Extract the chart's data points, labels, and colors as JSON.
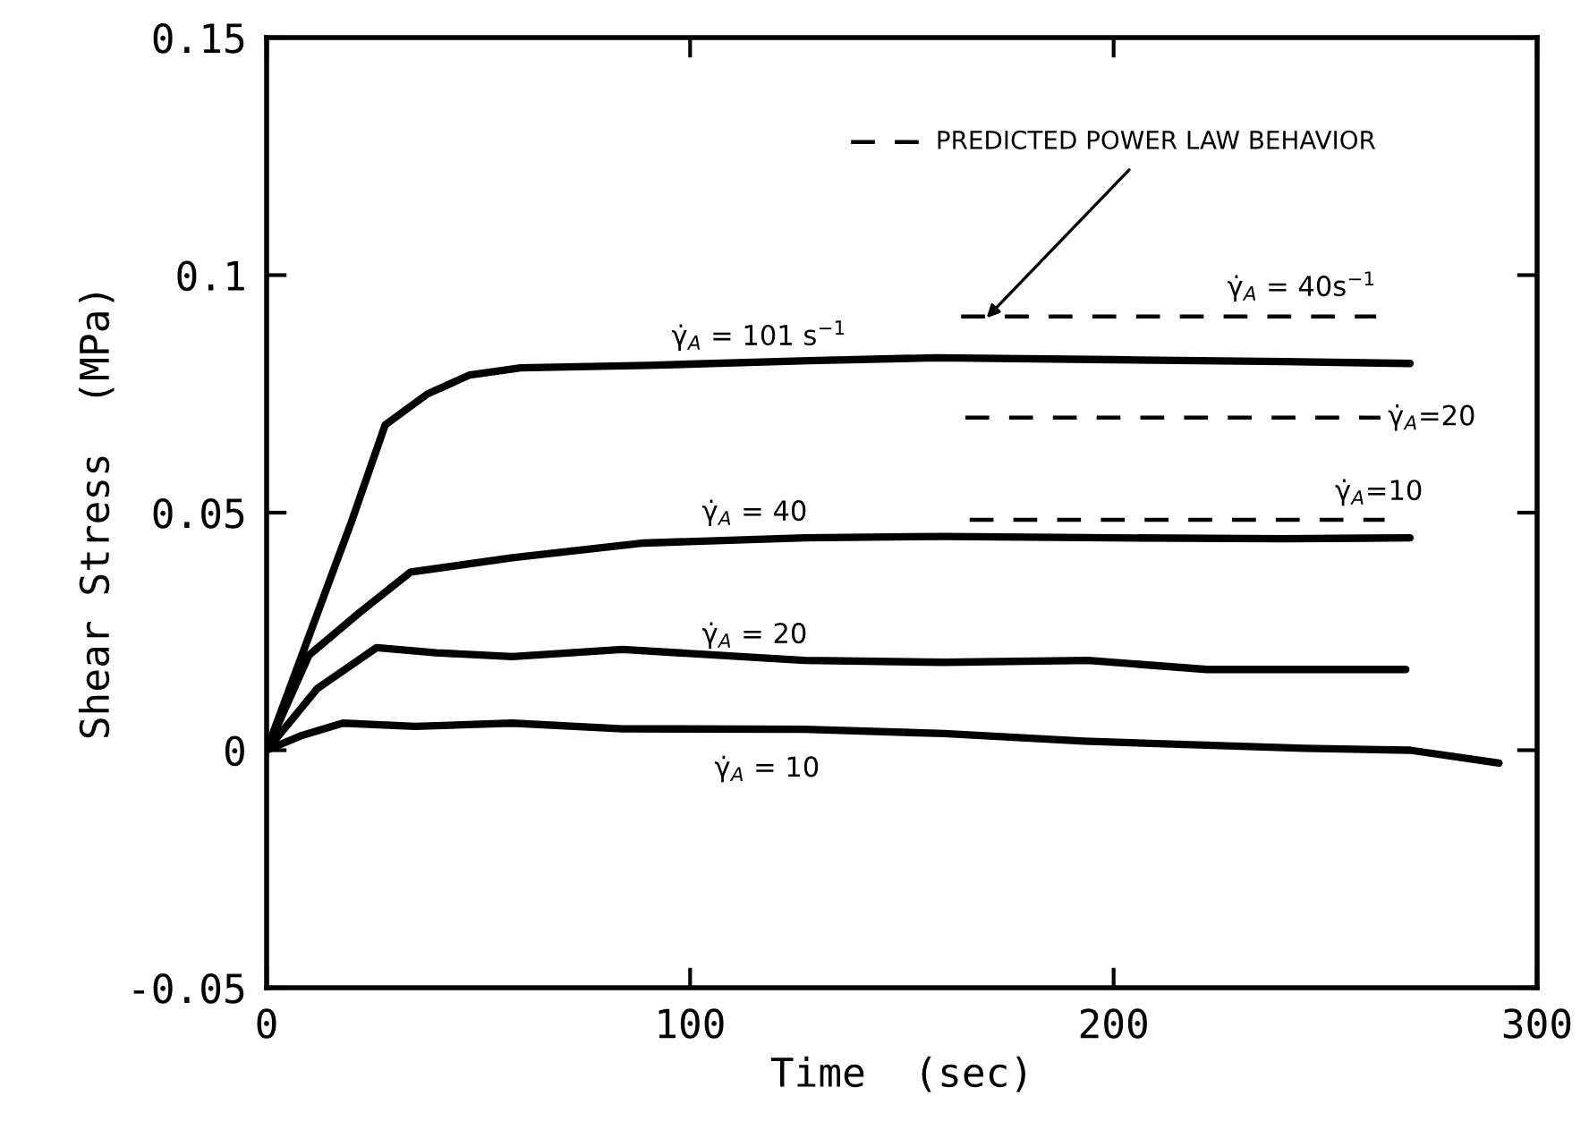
{
  "chart_data": {
    "type": "line",
    "xlabel": "Time  (sec)",
    "ylabel": "Shear Stress  (MPa)",
    "xlim": [
      0,
      300
    ],
    "ylim": [
      -0.05,
      0.15
    ],
    "xticks": [
      0,
      100,
      200,
      300
    ],
    "yticks": [
      -0.05,
      0,
      0.05,
      0.1,
      0.15
    ],
    "grid": false,
    "legend": false,
    "marker": "none",
    "annotations": [
      {
        "text": "PREDICTED POWER LAW BEHAVIOR",
        "x": 170,
        "y": 0.091
      }
    ],
    "series": [
      {
        "name": "γ̇$_{A}$ = 101 s$^{−1}$",
        "color": "#000000",
        "line_style": "solid",
        "x": [
          0,
          10,
          20,
          28,
          38,
          48,
          60,
          90,
          128,
          158,
          200,
          240,
          270
        ],
        "values": [
          0,
          0.024,
          0.048,
          0.0685,
          0.075,
          0.079,
          0.0805,
          0.081,
          0.082,
          0.0826,
          0.0822,
          0.0818,
          0.0814
        ]
      },
      {
        "name": "γ̇$_{A}$ = 40",
        "color": "#000000",
        "line_style": "solid",
        "x": [
          0,
          10,
          22,
          34,
          58,
          89,
          127,
          160,
          200,
          240,
          270
        ],
        "values": [
          0,
          0.02,
          0.029,
          0.0375,
          0.0405,
          0.0436,
          0.0447,
          0.045,
          0.0447,
          0.0445,
          0.0447
        ]
      },
      {
        "name": "γ̇$_{A}$ = 20",
        "color": "#000000",
        "line_style": "solid",
        "x": [
          0,
          12,
          26,
          40,
          58,
          84,
          127,
          160,
          194,
          222,
          269
        ],
        "values": [
          0,
          0.013,
          0.0216,
          0.0205,
          0.0197,
          0.0212,
          0.0189,
          0.0185,
          0.0189,
          0.017,
          0.017
        ]
      },
      {
        "name": "γ̇$_{A}$ = 10",
        "color": "#000000",
        "line_style": "solid",
        "x": [
          0,
          8,
          18,
          35,
          58,
          84,
          127,
          160,
          193,
          245,
          270,
          291
        ],
        "values": [
          0,
          0.003,
          0.0057,
          0.005,
          0.0057,
          0.0045,
          0.0044,
          0.0035,
          0.0019,
          0.0004,
          0.0,
          -0.0027
        ]
      },
      {
        "name": "γ̇$_{A}$ = 40s$^{−1}$",
        "color": "#000000",
        "line_style": "dashed",
        "x": [
          164,
          262
        ],
        "values": [
          0.0913,
          0.0913
        ]
      },
      {
        "name": "γ̇$_{A}$=20",
        "color": "#000000",
        "line_style": "dashed",
        "x": [
          165,
          263
        ],
        "values": [
          0.07,
          0.07
        ]
      },
      {
        "name": "γ̇$_{A}$=10",
        "color": "#000000",
        "line_style": "dashed",
        "x": [
          166,
          264
        ],
        "values": [
          0.0485,
          0.0485
        ]
      }
    ]
  }
}
